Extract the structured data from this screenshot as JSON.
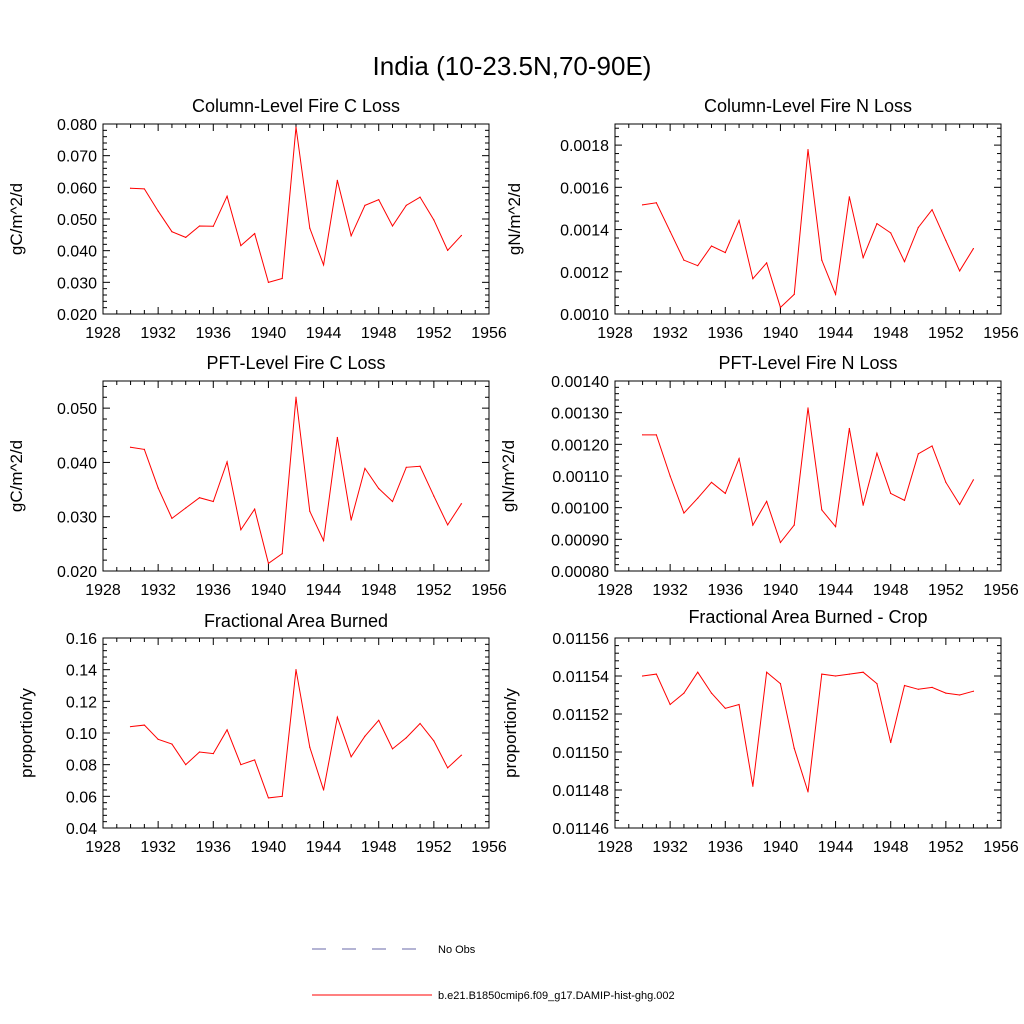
{
  "title": "India (10-23.5N,70-90E)",
  "chart_data": [
    {
      "type": "line",
      "title": "Column-Level Fire C Loss",
      "ylabel": "gC/m^2/d",
      "xlim": [
        1928,
        1956
      ],
      "ylim": [
        0.02,
        0.08
      ],
      "xticks": [
        1928,
        1932,
        1936,
        1940,
        1944,
        1948,
        1952,
        1956
      ],
      "xtick_labels": [
        "1928",
        "1932",
        "1936",
        "1940",
        "1944",
        "1948",
        "1952",
        "1956"
      ],
      "yticks": [
        0.02,
        0.03,
        0.04,
        0.05,
        0.06,
        0.07,
        0.08
      ],
      "ytick_labels": [
        "0.020",
        "0.030",
        "0.040",
        "0.050",
        "0.060",
        "0.070",
        "0.080"
      ],
      "x": [
        1930,
        1931,
        1932,
        1933,
        1934,
        1935,
        1936,
        1937,
        1938,
        1939,
        1940,
        1941,
        1942,
        1943,
        1944,
        1945,
        1946,
        1947,
        1948,
        1949,
        1950,
        1951,
        1952,
        1953,
        1954
      ],
      "series": [
        {
          "name": "b.e21.B1850cmip6.f09_g17.DAMIP-hist-ghg.002",
          "color": "#ff0000",
          "values": [
            0.0597,
            0.0595,
            0.0525,
            0.046,
            0.0442,
            0.0478,
            0.0477,
            0.0572,
            0.0416,
            0.0454,
            0.03,
            0.0312,
            0.079,
            0.0471,
            0.0355,
            0.0622,
            0.0447,
            0.0543,
            0.0561,
            0.0478,
            0.0543,
            0.0569,
            0.0497,
            0.0401,
            0.0448
          ]
        }
      ]
    },
    {
      "type": "line",
      "title": "Column-Level Fire N Loss",
      "ylabel": "gN/m^2/d",
      "xlim": [
        1928,
        1956
      ],
      "ylim": [
        0.001,
        0.0019
      ],
      "xticks": [
        1928,
        1932,
        1936,
        1940,
        1944,
        1948,
        1952,
        1956
      ],
      "xtick_labels": [
        "1928",
        "1932",
        "1936",
        "1940",
        "1944",
        "1948",
        "1952",
        "1956"
      ],
      "yticks": [
        0.001,
        0.0012,
        0.0014,
        0.0016,
        0.0018
      ],
      "ytick_labels": [
        "0.0010",
        "0.0012",
        "0.0014",
        "0.0016",
        "0.0018"
      ],
      "x": [
        1930,
        1931,
        1932,
        1933,
        1934,
        1935,
        1936,
        1937,
        1938,
        1939,
        1940,
        1941,
        1942,
        1943,
        1944,
        1945,
        1946,
        1947,
        1948,
        1949,
        1950,
        1951,
        1952,
        1953,
        1954
      ],
      "series": [
        {
          "name": "b.e21.B1850cmip6.f09_g17.DAMIP-hist-ghg.002",
          "color": "#ff0000",
          "values": [
            0.001517,
            0.001527,
            0.001391,
            0.001255,
            0.001229,
            0.001322,
            0.001291,
            0.001443,
            0.001167,
            0.001242,
            0.001031,
            0.001093,
            0.001779,
            0.001255,
            0.001093,
            0.001555,
            0.001267,
            0.001428,
            0.001384,
            0.001248,
            0.00141,
            0.001494,
            0.001348,
            0.001204,
            0.00131
          ]
        }
      ]
    },
    {
      "type": "line",
      "title": "PFT-Level Fire C Loss",
      "ylabel": "gC/m^2/d",
      "xlim": [
        1928,
        1956
      ],
      "ylim": [
        0.02,
        0.055
      ],
      "xticks": [
        1928,
        1932,
        1936,
        1940,
        1944,
        1948,
        1952,
        1956
      ],
      "xtick_labels": [
        "1928",
        "1932",
        "1936",
        "1940",
        "1944",
        "1948",
        "1952",
        "1956"
      ],
      "yticks": [
        0.02,
        0.03,
        0.04,
        0.05
      ],
      "ytick_labels": [
        "0.020",
        "0.030",
        "0.040",
        "0.050"
      ],
      "x": [
        1930,
        1931,
        1932,
        1933,
        1934,
        1935,
        1936,
        1937,
        1938,
        1939,
        1940,
        1941,
        1942,
        1943,
        1944,
        1945,
        1946,
        1947,
        1948,
        1949,
        1950,
        1951,
        1952,
        1953,
        1954
      ],
      "series": [
        {
          "name": "b.e21.B1850cmip6.f09_g17.DAMIP-hist-ghg.002",
          "color": "#ff0000",
          "values": [
            0.0428,
            0.0424,
            0.0353,
            0.0297,
            0.0316,
            0.0335,
            0.0328,
            0.0401,
            0.0276,
            0.0314,
            0.0214,
            0.0232,
            0.052,
            0.031,
            0.0256,
            0.0446,
            0.0294,
            0.0389,
            0.0352,
            0.0328,
            0.0391,
            0.0393,
            0.0338,
            0.0285,
            0.0324
          ]
        }
      ]
    },
    {
      "type": "line",
      "title": "PFT-Level Fire N Loss",
      "ylabel": "gN/m^2/d",
      "xlim": [
        1928,
        1956
      ],
      "ylim": [
        0.0008,
        0.0014
      ],
      "xticks": [
        1928,
        1932,
        1936,
        1940,
        1944,
        1948,
        1952,
        1956
      ],
      "xtick_labels": [
        "1928",
        "1932",
        "1936",
        "1940",
        "1944",
        "1948",
        "1952",
        "1956"
      ],
      "yticks": [
        0.0008,
        0.0009,
        0.001,
        0.0011,
        0.0012,
        0.0013,
        0.0014
      ],
      "ytick_labels": [
        "0.00080",
        "0.00090",
        "0.00100",
        "0.00110",
        "0.00120",
        "0.00130",
        "0.00140"
      ],
      "x": [
        1930,
        1931,
        1932,
        1933,
        1934,
        1935,
        1936,
        1937,
        1938,
        1939,
        1940,
        1941,
        1942,
        1943,
        1944,
        1945,
        1946,
        1947,
        1948,
        1949,
        1950,
        1951,
        1952,
        1953,
        1954
      ],
      "series": [
        {
          "name": "b.e21.B1850cmip6.f09_g17.DAMIP-hist-ghg.002",
          "color": "#ff0000",
          "values": [
            0.00123,
            0.00123,
            0.0011,
            0.000983,
            0.00103,
            0.00108,
            0.001045,
            0.001155,
            0.000945,
            0.00102,
            0.00089,
            0.000945,
            0.001315,
            0.000993,
            0.00094,
            0.00125,
            0.001008,
            0.001172,
            0.001045,
            0.001023,
            0.00117,
            0.001195,
            0.00108,
            0.00101,
            0.001088
          ]
        }
      ]
    },
    {
      "type": "line",
      "title": "Fractional Area Burned",
      "ylabel": "proportion/y",
      "xlim": [
        1928,
        1956
      ],
      "ylim": [
        0.04,
        0.16
      ],
      "xticks": [
        1928,
        1932,
        1936,
        1940,
        1944,
        1948,
        1952,
        1956
      ],
      "xtick_labels": [
        "1928",
        "1932",
        "1936",
        "1940",
        "1944",
        "1948",
        "1952",
        "1956"
      ],
      "yticks": [
        0.04,
        0.06,
        0.08,
        0.1,
        0.12,
        0.14,
        0.16
      ],
      "ytick_labels": [
        "0.04",
        "0.06",
        "0.08",
        "0.10",
        "0.12",
        "0.14",
        "0.16"
      ],
      "x": [
        1930,
        1931,
        1932,
        1933,
        1934,
        1935,
        1936,
        1937,
        1938,
        1939,
        1940,
        1941,
        1942,
        1943,
        1944,
        1945,
        1946,
        1947,
        1948,
        1949,
        1950,
        1951,
        1952,
        1953,
        1954
      ],
      "series": [
        {
          "name": "b.e21.B1850cmip6.f09_g17.DAMIP-hist-ghg.002",
          "color": "#ff0000",
          "values": [
            0.104,
            0.105,
            0.096,
            0.093,
            0.08,
            0.088,
            0.087,
            0.102,
            0.08,
            0.083,
            0.059,
            0.06,
            0.14,
            0.091,
            0.064,
            0.11,
            0.085,
            0.098,
            0.108,
            0.09,
            0.097,
            0.106,
            0.095,
            0.078,
            0.086
          ]
        }
      ]
    },
    {
      "type": "line",
      "title": "Fractional Area Burned - Crop",
      "ylabel": "proportion/y",
      "xlim": [
        1928,
        1956
      ],
      "ylim": [
        0.01146,
        0.01156
      ],
      "xticks": [
        1928,
        1932,
        1936,
        1940,
        1944,
        1948,
        1952,
        1956
      ],
      "xtick_labels": [
        "1928",
        "1932",
        "1936",
        "1940",
        "1944",
        "1948",
        "1952",
        "1956"
      ],
      "yticks": [
        0.01146,
        0.01148,
        0.0115,
        0.01152,
        0.01154,
        0.01156
      ],
      "ytick_labels": [
        "0.01146",
        "0.01148",
        "0.01150",
        "0.01152",
        "0.01154",
        "0.01156"
      ],
      "x": [
        1930,
        1931,
        1932,
        1933,
        1934,
        1935,
        1936,
        1937,
        1938,
        1939,
        1940,
        1941,
        1942,
        1943,
        1944,
        1945,
        1946,
        1947,
        1948,
        1949,
        1950,
        1951,
        1952,
        1953,
        1954
      ],
      "series": [
        {
          "name": "b.e21.B1850cmip6.f09_g17.DAMIP-hist-ghg.002",
          "color": "#ff0000",
          "values": [
            0.01154,
            0.011541,
            0.011525,
            0.011531,
            0.011542,
            0.011531,
            0.011523,
            0.011525,
            0.011482,
            0.011542,
            0.011536,
            0.011502,
            0.011479,
            0.011541,
            0.01154,
            0.011541,
            0.011542,
            0.011536,
            0.011505,
            0.011535,
            0.011533,
            0.011534,
            0.011531,
            0.01153,
            0.011532
          ]
        }
      ]
    }
  ],
  "legend": [
    {
      "label": "No Obs",
      "color": "#6a6aa8",
      "style": "dashed"
    },
    {
      "label": "b.e21.B1850cmip6.f09_g17.DAMIP-hist-ghg.002",
      "color": "#ff0000",
      "style": "solid"
    }
  ]
}
